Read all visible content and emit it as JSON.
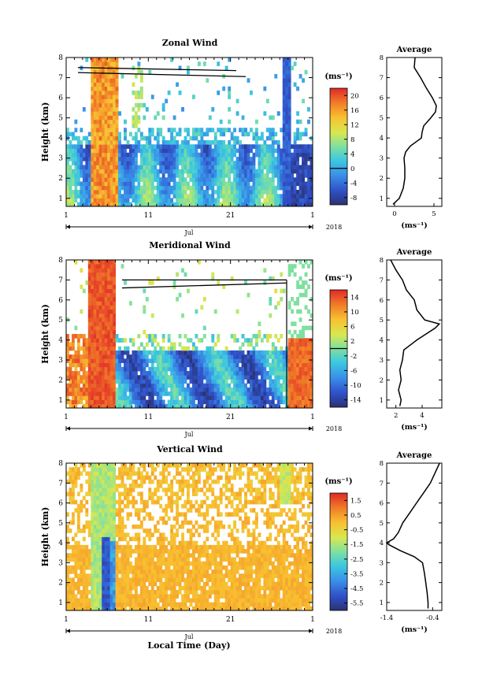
{
  "figure": {
    "xlabel": "Local Time (Day)",
    "month_label": "Jul",
    "year_label": "2018",
    "unit_label": "(ms⁻¹)",
    "avg_unit_label": "(ms⁻¹)"
  },
  "chart_data": [
    {
      "type": "heatmap",
      "title": "Zonal Wind",
      "xlabel": "Jul",
      "ylabel": "Height (km)",
      "xlim": [
        1,
        31
      ],
      "ylim": [
        0.6,
        8
      ],
      "xticks": [
        "1",
        "11",
        "21",
        "1"
      ],
      "yticks": [
        "1",
        "2",
        "3",
        "4",
        "5",
        "6",
        "7",
        "8"
      ],
      "colorbar": {
        "label": "(ms⁻¹)",
        "range": [
          -10,
          22
        ],
        "ticks": [
          "20",
          "16",
          "12",
          "8",
          "4",
          "0",
          "-4",
          "-8"
        ],
        "zero_line": 0
      },
      "average": {
        "title": "Average",
        "xlabel": "(ms⁻¹)",
        "xlim": [
          -1,
          6
        ],
        "xticks": [
          "0",
          "5"
        ],
        "height_km": [
          0.7,
          1.0,
          1.5,
          2.0,
          2.5,
          3.0,
          3.3,
          3.6,
          3.8,
          4.0,
          4.3,
          4.6,
          5.0,
          5.3,
          5.6,
          6.0,
          6.5,
          7.0,
          7.5,
          8.0
        ],
        "value": [
          -0.2,
          0.6,
          1.1,
          1.3,
          1.3,
          1.2,
          1.4,
          2.0,
          2.7,
          3.4,
          3.5,
          3.7,
          4.6,
          5.2,
          5.3,
          4.8,
          4.0,
          3.3,
          2.5,
          2.6
        ]
      }
    },
    {
      "type": "heatmap",
      "title": "Meridional Wind",
      "xlabel": "Jul",
      "ylabel": "Height (km)",
      "xlim": [
        1,
        31
      ],
      "ylim": [
        0.6,
        8
      ],
      "xticks": [
        "1",
        "11",
        "21",
        "1"
      ],
      "yticks": [
        "1",
        "2",
        "3",
        "4",
        "5",
        "6",
        "7",
        "8"
      ],
      "colorbar": {
        "label": "(ms⁻¹)",
        "range": [
          -16,
          16
        ],
        "ticks": [
          "14",
          "10",
          "6",
          "2",
          "-2",
          "-6",
          "-10",
          "-14"
        ],
        "zero_line": 0
      },
      "average": {
        "title": "Average",
        "xlabel": "(ms⁻¹)",
        "xlim": [
          1.3,
          5.5
        ],
        "xticks": [
          "2",
          "4"
        ],
        "height_km": [
          0.7,
          1.0,
          1.5,
          2.0,
          2.5,
          3.0,
          3.5,
          3.8,
          4.0,
          4.3,
          4.6,
          4.8,
          5.0,
          5.5,
          6.0,
          6.5,
          7.0,
          7.5,
          8.0
        ],
        "value": [
          2.3,
          2.4,
          2.2,
          2.4,
          2.3,
          2.5,
          2.6,
          3.2,
          3.6,
          4.3,
          5.0,
          5.3,
          4.2,
          3.6,
          3.4,
          2.8,
          2.5,
          2.0,
          1.6
        ]
      }
    },
    {
      "type": "heatmap",
      "title": "Vertical Wind",
      "xlabel": "Jul",
      "ylabel": "Height (km)",
      "xlim": [
        1,
        31
      ],
      "ylim": [
        0.6,
        8
      ],
      "xticks": [
        "1",
        "11",
        "21",
        "1"
      ],
      "yticks": [
        "1",
        "2",
        "3",
        "4",
        "5",
        "6",
        "7",
        "8"
      ],
      "colorbar": {
        "label": "(ms⁻¹)",
        "range": [
          -6,
          2
        ],
        "ticks": [
          "1.5",
          "0.5",
          "-0.5",
          "-1.5",
          "-2.5",
          "-3.5",
          "-4.5",
          "-5.5"
        ]
      },
      "average": {
        "title": "Average",
        "xlabel": "(ms⁻¹)",
        "xlim": [
          -1.4,
          -0.2
        ],
        "xticks": [
          "-1.4",
          "-0.4"
        ],
        "height_km": [
          0.7,
          1.0,
          1.5,
          2.0,
          2.5,
          3.0,
          3.3,
          3.6,
          3.9,
          4.0,
          4.2,
          4.5,
          5.0,
          5.5,
          6.0,
          6.5,
          7.0,
          7.5,
          8.0
        ],
        "value": [
          -0.5,
          -0.5,
          -0.52,
          -0.55,
          -0.58,
          -0.62,
          -0.8,
          -1.1,
          -1.35,
          -1.4,
          -1.25,
          -1.15,
          -1.05,
          -0.9,
          -0.75,
          -0.6,
          -0.45,
          -0.35,
          -0.25
        ]
      }
    }
  ]
}
